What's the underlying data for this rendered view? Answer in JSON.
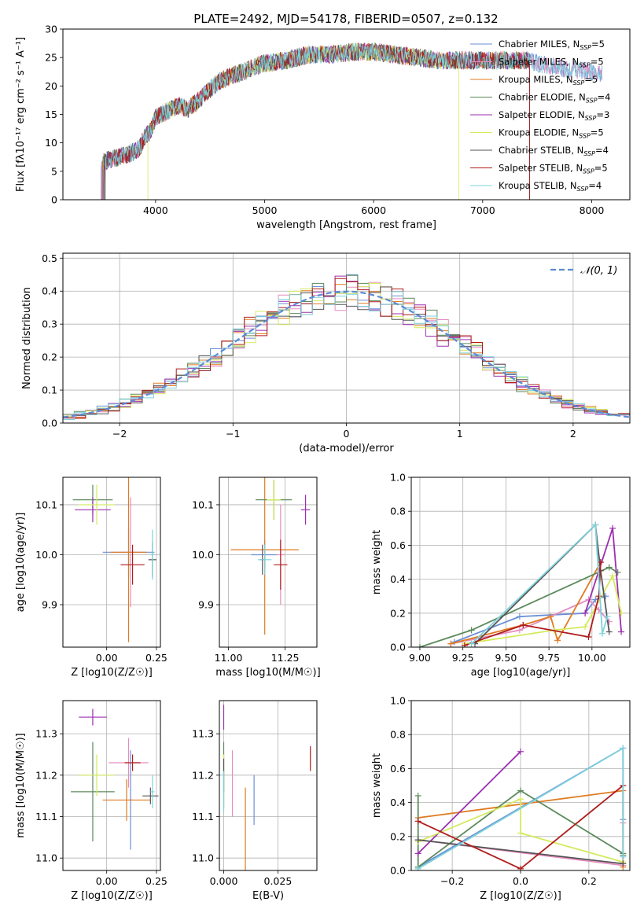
{
  "figure_title": "PLATE=2492, MJD=54178, FIBERID=0507, z=0.132",
  "colors": {
    "Chabrier MILES": "#6a8fd6",
    "Salpeter MILES": "#e58cc0",
    "Kroupa MILES": "#e07b22",
    "Chabrier ELODIE": "#5c8a5c",
    "Salpeter ELODIE": "#9b2fb0",
    "Kroupa ELODIE": "#d4ea5c",
    "Chabrier STELIB": "#555555",
    "Salpeter STELIB": "#b01c1c",
    "Kroupa STELIB": "#7ed2dc"
  },
  "chart_data": [
    {
      "id": "spectrum",
      "type": "line",
      "xlabel": "wavelength [Angstrom, rest frame]",
      "ylabel": "Flux [fλ10⁻¹⁷ erg cm⁻² s⁻¹ A⁻¹]",
      "xlim": [
        3150,
        8350
      ],
      "ylim": [
        0,
        30
      ],
      "xticks": [
        4000,
        5000,
        6000,
        7000,
        8000
      ],
      "yticks": [
        0,
        5,
        10,
        15,
        20,
        25,
        30
      ],
      "legend": "top-right",
      "series": [
        {
          "name": "Chabrier MILES",
          "nssp": 5
        },
        {
          "name": "Salpeter MILES",
          "nssp": 5
        },
        {
          "name": "Kroupa MILES",
          "nssp": 5
        },
        {
          "name": "Chabrier ELODIE",
          "nssp": 4
        },
        {
          "name": "Salpeter ELODIE",
          "nssp": 3
        },
        {
          "name": "Kroupa ELODIE",
          "nssp": 5
        },
        {
          "name": "Chabrier STELIB",
          "nssp": 4
        },
        {
          "name": "Salpeter STELIB",
          "nssp": 5
        },
        {
          "name": "Kroupa STELIB",
          "nssp": 4
        }
      ],
      "continuum": {
        "x": [
          3350,
          3500,
          3650,
          3750,
          3850,
          3900,
          3950,
          4000,
          4100,
          4200,
          4300,
          4400,
          4500,
          4600,
          4800,
          5000,
          5200,
          5400,
          5600,
          5800,
          6000,
          6200,
          6400,
          6600,
          6800,
          7000,
          7200,
          7400,
          7600,
          7800,
          8000,
          8100
        ],
        "y": [
          7,
          6.5,
          7.5,
          8,
          9,
          11,
          12,
          14.5,
          15.5,
          16.5,
          16,
          17.5,
          19.5,
          21,
          22.5,
          24,
          24.5,
          25.5,
          25.5,
          26,
          26,
          25.5,
          25,
          24.5,
          24.5,
          24.5,
          24.5,
          24.5,
          23.5,
          23,
          22.5,
          22
        ]
      },
      "range_starts": [
        3350,
        3350,
        3350,
        3350,
        3350,
        3930,
        3350,
        3350,
        3350
      ],
      "range_ends": [
        8100,
        8100,
        7430,
        7430,
        7430,
        6780,
        7430,
        7430,
        8100
      ]
    },
    {
      "id": "residuals",
      "type": "histogram",
      "xlabel": "(data-model)/error",
      "ylabel": "Normed distribution",
      "xlim": [
        -2.5,
        2.5
      ],
      "ylim": [
        0,
        0.515
      ],
      "xticks": [
        -2,
        -1,
        0,
        1,
        2
      ],
      "yticks": [
        0.0,
        0.1,
        0.2,
        0.3,
        0.4,
        0.5
      ],
      "grid": true,
      "legend": "top-right",
      "reference_curve": "𝒩(0, 1)",
      "bin_width": 0.1,
      "bin_start": -2.5
    },
    {
      "id": "age_vs_Z",
      "type": "scatter",
      "xlabel": "Z [log10(Z/Z☉)]",
      "ylabel": "age  [log10(age/yr)]",
      "xlim": [
        -0.22,
        0.27
      ],
      "ylim": [
        9.815,
        10.155
      ],
      "xticks": [
        0.0,
        0.25
      ],
      "yticks": [
        9.9,
        10.0,
        10.1
      ],
      "points": [
        {
          "x": 0.11,
          "y": 10.005,
          "xerr": 0.13,
          "yerr": 0.05
        },
        {
          "x": 0.12,
          "y": 10.005,
          "xerr": 0.05,
          "yerr": 0.11
        },
        {
          "x": 0.11,
          "y": 10.005,
          "xerr": 0.09,
          "yerr": 0.18
        },
        {
          "x": -0.07,
          "y": 10.11,
          "xerr": 0.1,
          "yerr": 0.03
        },
        {
          "x": -0.07,
          "y": 10.09,
          "xerr": 0.09,
          "yerr": 0.025
        },
        {
          "x": -0.05,
          "y": 10.1,
          "xerr": 0.09,
          "yerr": 0.04
        },
        {
          "x": 0.23,
          "y": 9.99,
          "xerr": 0.02,
          "yerr": 0.035
        },
        {
          "x": 0.13,
          "y": 9.98,
          "xerr": 0.06,
          "yerr": 0.04
        },
        {
          "x": 0.23,
          "y": 10.0,
          "xerr": 0.01,
          "yerr": 0.05
        }
      ]
    },
    {
      "id": "age_vs_mass",
      "type": "scatter",
      "xlabel": "mass [log10(M/M☉)]",
      "ylabel": "",
      "xlim": [
        10.96,
        11.39
      ],
      "ylim": [
        9.815,
        10.155
      ],
      "xticks": [
        11.0,
        11.25
      ],
      "yticks": [
        9.9,
        10.0,
        10.1
      ],
      "points": [
        {
          "x": 11.16,
          "y": 10.0,
          "xerr": 0.06,
          "yerr": 0.03
        },
        {
          "x": 11.23,
          "y": 10.0,
          "xerr": 0.02,
          "yerr": 0.1
        },
        {
          "x": 11.16,
          "y": 10.01,
          "xerr": 0.15,
          "yerr": 0.17
        },
        {
          "x": 11.2,
          "y": 10.11,
          "xerr": 0.08,
          "yerr": 0.04
        },
        {
          "x": 11.34,
          "y": 10.09,
          "xerr": 0.02,
          "yerr": 0.03
        },
        {
          "x": 11.2,
          "y": 10.11,
          "xerr": 0.03,
          "yerr": 0.04
        },
        {
          "x": 11.15,
          "y": 9.99,
          "xerr": 0.01,
          "yerr": 0.03
        },
        {
          "x": 11.23,
          "y": 9.98,
          "xerr": 0.03,
          "yerr": 0.05
        },
        {
          "x": 11.16,
          "y": 9.99,
          "xerr": 0.03,
          "yerr": 0.03
        }
      ]
    },
    {
      "id": "weight_vs_age",
      "type": "line",
      "xlabel": "age  [log10(age/yr)]",
      "ylabel": "mass weight",
      "xlim": [
        8.95,
        10.22
      ],
      "ylim": [
        0,
        1.0
      ],
      "xticks": [
        9.0,
        9.25,
        9.5,
        9.75,
        10.0
      ],
      "yticks": [
        0.0,
        0.2,
        0.4,
        0.6,
        0.8,
        1.0
      ],
      "grid": true,
      "series": [
        {
          "name": "Chabrier MILES",
          "x": [
            9.2,
            9.58,
            9.96,
            10.02,
            10.08
          ],
          "y": [
            0.03,
            0.18,
            0.2,
            0.28,
            0.3
          ]
        },
        {
          "name": "Salpeter MILES",
          "x": [
            9.18,
            9.58,
            9.98,
            10.04,
            10.1
          ],
          "y": [
            0.02,
            0.1,
            0.28,
            0.22,
            0.15
          ]
        },
        {
          "name": "Kroupa MILES",
          "x": [
            9.18,
            9.6,
            9.76,
            9.8,
            10.05
          ],
          "y": [
            0.02,
            0.13,
            0.18,
            0.04,
            0.5
          ]
        },
        {
          "name": "Chabrier ELODIE",
          "x": [
            9.0,
            9.3,
            10.1,
            10.15
          ],
          "y": [
            0.0,
            0.1,
            0.47,
            0.44
          ]
        },
        {
          "name": "Salpeter ELODIE",
          "x": [
            9.96,
            10.12,
            10.17
          ],
          "y": [
            0.2,
            0.7,
            0.09
          ]
        },
        {
          "name": "Kroupa ELODIE",
          "x": [
            9.26,
            9.78,
            9.96,
            10.12,
            10.17
          ],
          "y": [
            0.02,
            0.1,
            0.12,
            0.42,
            0.2
          ]
        },
        {
          "name": "Chabrier STELIB",
          "x": [
            9.32,
            10.02,
            10.05,
            10.1
          ],
          "y": [
            0.02,
            0.72,
            0.45,
            0.09
          ]
        },
        {
          "name": "Salpeter STELIB",
          "x": [
            9.26,
            9.6,
            9.98,
            10.04,
            10.05
          ],
          "y": [
            0.01,
            0.13,
            0.06,
            0.3,
            0.5
          ]
        },
        {
          "name": "Kroupa STELIB",
          "x": [
            9.3,
            10.02,
            10.06,
            10.09
          ],
          "y": [
            0.02,
            0.72,
            0.08,
            0.18
          ]
        }
      ]
    },
    {
      "id": "mass_vs_Z",
      "type": "scatter",
      "xlabel": "Z [log10(Z/Z☉)]",
      "ylabel": "mass [log10(M/M☉)]",
      "xlim": [
        -0.22,
        0.27
      ],
      "ylim": [
        10.97,
        11.38
      ],
      "xticks": [
        0.0,
        0.25
      ],
      "yticks": [
        11.0,
        11.1,
        11.2,
        11.3
      ],
      "points": [
        {
          "x": 0.12,
          "y": 11.14,
          "xerr": 0.01,
          "yerr": 0.12
        },
        {
          "x": 0.11,
          "y": 11.23,
          "xerr": 0.1,
          "yerr": 0.06
        },
        {
          "x": 0.1,
          "y": 11.14,
          "xerr": 0.12,
          "yerr": 0.05
        },
        {
          "x": -0.07,
          "y": 11.16,
          "xerr": 0.11,
          "yerr": 0.12
        },
        {
          "x": -0.07,
          "y": 11.34,
          "xerr": 0.07,
          "yerr": 0.02
        },
        {
          "x": -0.05,
          "y": 11.2,
          "xerr": 0.09,
          "yerr": 0.05
        },
        {
          "x": 0.22,
          "y": 11.15,
          "xerr": 0.04,
          "yerr": 0.02
        },
        {
          "x": 0.13,
          "y": 11.23,
          "xerr": 0.04,
          "yerr": 0.02
        },
        {
          "x": 0.23,
          "y": 11.16,
          "xerr": 0.01,
          "yerr": 0.04
        }
      ]
    },
    {
      "id": "mass_vs_EBV",
      "type": "scatter",
      "xlabel": "E(B-V)",
      "ylabel": "",
      "xlim": [
        -0.002,
        0.043
      ],
      "ylim": [
        10.97,
        11.38
      ],
      "xticks": [
        0.0,
        0.025
      ],
      "yticks": [
        11.0,
        11.1,
        11.2,
        11.3
      ],
      "points": [
        {
          "x": 0.014,
          "y": 11.14,
          "xerr": 0,
          "yerr": 0.06
        },
        {
          "x": 0.004,
          "y": 11.18,
          "xerr": 0,
          "yerr": 0.08
        },
        {
          "x": 0.01,
          "y": 11.06,
          "xerr": 0,
          "yerr": 0.11
        },
        {
          "x": 0.0,
          "y": 11.2,
          "xerr": 0,
          "yerr": 0.08
        },
        {
          "x": 0.0,
          "y": 11.34,
          "xerr": 0,
          "yerr": 0.03
        },
        {
          "x": 0.0,
          "y": 11.2,
          "xerr": 0,
          "yerr": 0.05
        },
        {
          "x": 0.0,
          "y": 11.2,
          "xerr": 0,
          "yerr": 0.04
        },
        {
          "x": 0.04,
          "y": 11.24,
          "xerr": 0,
          "yerr": 0.03
        },
        {
          "x": 0.0,
          "y": 11.16,
          "xerr": 0,
          "yerr": 0.05
        }
      ]
    },
    {
      "id": "weight_vs_Z",
      "type": "line",
      "xlabel": "Z [log10(Z/Z☉)]",
      "ylabel": "mass weight",
      "xlim": [
        -0.32,
        0.32
      ],
      "ylim": [
        0,
        1.0
      ],
      "xticks": [
        -0.2,
        0.0,
        0.2
      ],
      "yticks": [
        0.0,
        0.2,
        0.4,
        0.6,
        0.8,
        1.0
      ],
      "grid": true,
      "series": [
        {
          "name": "Chabrier MILES",
          "x": [
            -0.3,
            0.3,
            0.3
          ],
          "y": [
            0.02,
            0.72,
            0.3
          ]
        },
        {
          "name": "Salpeter MILES",
          "x": [
            -0.3,
            0.3,
            0.3
          ],
          "y": [
            0.18,
            0.03,
            0.28
          ]
        },
        {
          "name": "Kroupa MILES",
          "x": [
            -0.3,
            0.3,
            0.3
          ],
          "y": [
            0.31,
            0.47,
            0.02
          ]
        },
        {
          "name": "Chabrier ELODIE",
          "x": [
            -0.3,
            -0.3,
            0.0,
            0.3,
            0.3
          ],
          "y": [
            0.44,
            0.02,
            0.47,
            0.1,
            0.09
          ]
        },
        {
          "name": "Salpeter ELODIE",
          "x": [
            -0.3,
            0.0
          ],
          "y": [
            0.1,
            0.7
          ]
        },
        {
          "name": "Kroupa ELODIE",
          "x": [
            -0.3,
            0.0,
            0.0,
            0.3
          ],
          "y": [
            0.17,
            0.42,
            0.22,
            0.05
          ]
        },
        {
          "name": "Chabrier STELIB",
          "x": [
            -0.3,
            0.3
          ],
          "y": [
            0.18,
            0.04
          ]
        },
        {
          "name": "Salpeter STELIB",
          "x": [
            -0.3,
            0.0,
            0.3
          ],
          "y": [
            0.29,
            0.01,
            0.5
          ]
        },
        {
          "name": "Kroupa STELIB",
          "x": [
            -0.3,
            0.3,
            0.3
          ],
          "y": [
            0.01,
            0.72,
            0.08
          ]
        }
      ]
    }
  ]
}
